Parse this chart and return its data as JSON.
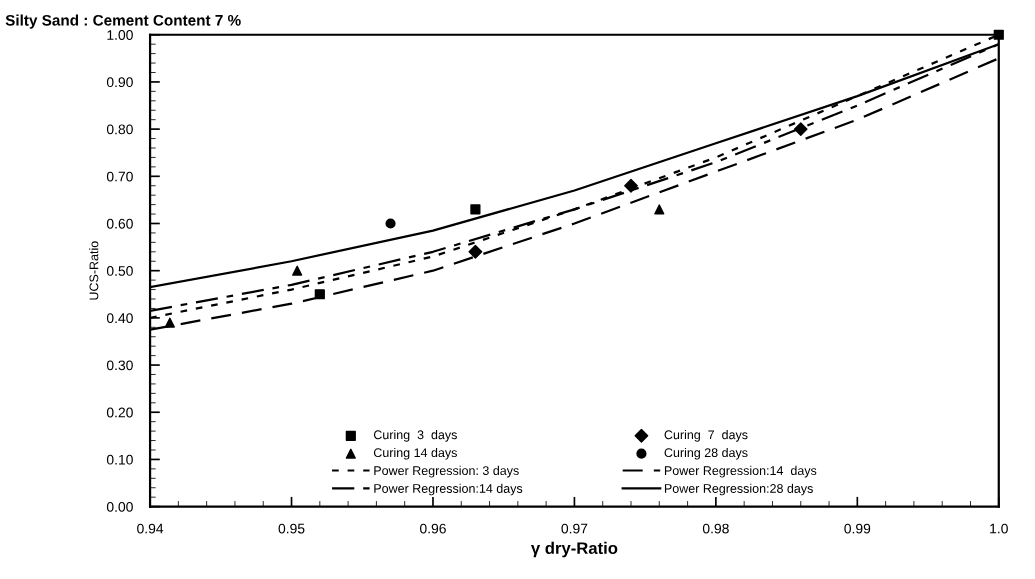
{
  "chart_data": {
    "type": "line",
    "title": "Silty Sand : Cement Content 7 %",
    "xlabel": "γ dry-Ratio",
    "ylabel": "UCS-Ratio",
    "xlim": [
      0.94,
      1.0
    ],
    "xticks": [
      0.94,
      0.95,
      0.96,
      0.97,
      0.98,
      0.99,
      {
        "value": 1.0,
        "label": "1.0"
      }
    ],
    "ylim": [
      0,
      1
    ],
    "yticks": [
      {
        "value": 0,
        "label": "0.00"
      },
      {
        "value": 0.1,
        "label": "0.10"
      },
      {
        "value": 0.2,
        "label": "0.20"
      },
      {
        "value": 0.3,
        "label": "0.30"
      },
      {
        "value": 0.4,
        "label": "0.40"
      },
      {
        "value": 0.5,
        "label": "0.50"
      },
      {
        "value": 0.6,
        "label": "0.60"
      },
      {
        "value": 0.7,
        "label": "0.70"
      },
      {
        "value": 0.8,
        "label": "0.80"
      },
      {
        "value": 0.9,
        "label": "0.90"
      },
      {
        "value": 1.0,
        "label": "1.00"
      }
    ],
    "grid": false,
    "legend": "bottom",
    "series": [
      {
        "name": "Curing  3  days",
        "type": "scatter",
        "marker": "square",
        "color": "#000000",
        "x": [
          0.952,
          0.963,
          1.0
        ],
        "values": [
          0.45,
          0.63,
          1.0
        ]
      },
      {
        "name": "Curing 14 days",
        "type": "scatter",
        "marker": "triangle",
        "color": "#000000",
        "x": [
          0.9414,
          0.9504,
          0.976
        ],
        "values": [
          0.39,
          0.5,
          0.63
        ]
      },
      {
        "name": "Power Regression: 3 days",
        "type": "line",
        "line_style": "dotted",
        "color": "#000000",
        "x": [
          0.94,
          0.95,
          0.96,
          0.97,
          0.98,
          0.99,
          1.0
        ],
        "values": [
          0.4,
          0.46,
          0.53,
          0.63,
          0.74,
          0.87,
          1.0
        ]
      },
      {
        "name": "Power Regression:14 days",
        "type": "line",
        "line_style": "dashdot",
        "color": "#000000",
        "x": [
          0.94,
          0.95,
          0.96,
          0.97,
          0.98,
          0.99,
          1.0
        ],
        "values": [
          0.415,
          0.47,
          0.54,
          0.63,
          0.73,
          0.85,
          0.98
        ]
      },
      {
        "name": "Curing  7  days",
        "type": "scatter",
        "marker": "diamond",
        "color": "#000000",
        "x": [
          0.963,
          0.974,
          0.986
        ],
        "values": [
          0.54,
          0.68,
          0.8
        ]
      },
      {
        "name": "Curing 28 days",
        "type": "scatter",
        "marker": "circle",
        "color": "#000000",
        "x": [
          0.957
        ],
        "values": [
          0.6
        ]
      },
      {
        "name": "Power Regression:14  days",
        "type": "line",
        "line_style": "dashed",
        "color": "#000000",
        "x": [
          0.94,
          0.95,
          0.96,
          0.97,
          0.98,
          0.99,
          1.0
        ],
        "values": [
          0.375,
          0.43,
          0.5,
          0.6,
          0.71,
          0.82,
          0.95
        ]
      },
      {
        "name": "Power Regression:28 days",
        "type": "line",
        "line_style": "solid",
        "color": "#000000",
        "x": [
          0.94,
          0.95,
          0.96,
          0.97,
          0.98,
          0.99,
          1.0
        ],
        "values": [
          0.465,
          0.52,
          0.585,
          0.67,
          0.77,
          0.87,
          0.98
        ]
      }
    ]
  }
}
